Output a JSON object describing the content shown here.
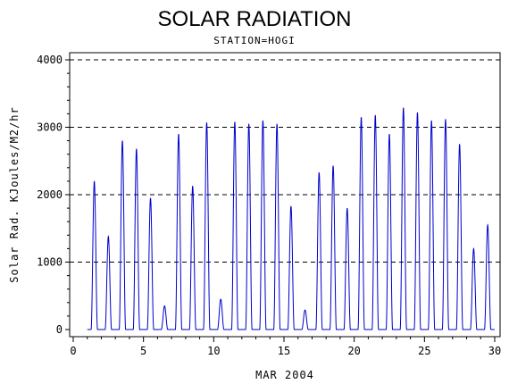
{
  "chart_data": {
    "type": "line",
    "title": "SOLAR RADIATION",
    "subtitle": "STATION=HOGI",
    "xlabel": "MAR 2004",
    "ylabel": "Solar Rad. KJoules/M2/hr",
    "xlim": [
      0,
      30
    ],
    "ylim": [
      0,
      4000
    ],
    "x_ticks": [
      0,
      5,
      10,
      15,
      20,
      25,
      30
    ],
    "y_ticks": [
      0,
      1000,
      2000,
      3000,
      4000
    ],
    "y_gridlines": [
      1000,
      2000,
      3000,
      4000
    ],
    "grid": "horizontal dashed",
    "line_color": "#0000cc",
    "daily_peaks": [
      {
        "day": 1,
        "peak": 2200
      },
      {
        "day": 2,
        "peak": 1380
      },
      {
        "day": 3,
        "peak": 2800
      },
      {
        "day": 4,
        "peak": 2680
      },
      {
        "day": 5,
        "peak": 1950
      },
      {
        "day": 6,
        "peak": 350
      },
      {
        "day": 7,
        "peak": 2900
      },
      {
        "day": 8,
        "peak": 2130
      },
      {
        "day": 9,
        "peak": 3070
      },
      {
        "day": 10,
        "peak": 450
      },
      {
        "day": 11,
        "peak": 3080
      },
      {
        "day": 12,
        "peak": 3050
      },
      {
        "day": 13,
        "peak": 3100
      },
      {
        "day": 14,
        "peak": 3050
      },
      {
        "day": 15,
        "peak": 1830
      },
      {
        "day": 16,
        "peak": 290
      },
      {
        "day": 17,
        "peak": 2330
      },
      {
        "day": 18,
        "peak": 2430
      },
      {
        "day": 19,
        "peak": 1800
      },
      {
        "day": 20,
        "peak": 3150
      },
      {
        "day": 21,
        "peak": 3180
      },
      {
        "day": 22,
        "peak": 2900
      },
      {
        "day": 23,
        "peak": 3290
      },
      {
        "day": 24,
        "peak": 3220
      },
      {
        "day": 25,
        "peak": 3100
      },
      {
        "day": 26,
        "peak": 3120
      },
      {
        "day": 27,
        "peak": 2750
      },
      {
        "day": 28,
        "peak": 1200
      },
      {
        "day": 29,
        "peak": 1550
      }
    ]
  }
}
